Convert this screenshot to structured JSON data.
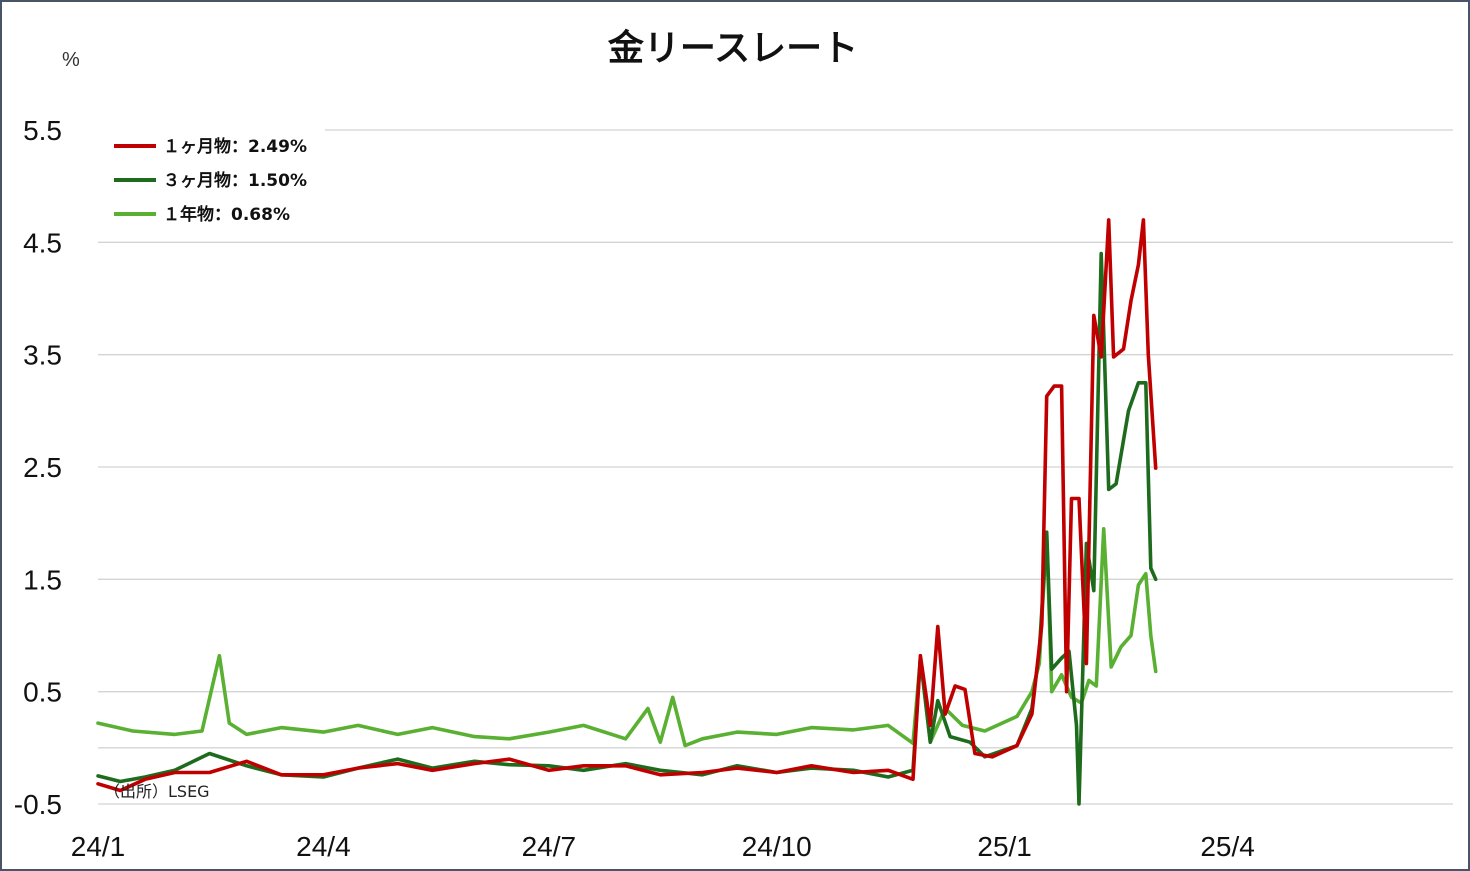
{
  "chart_data": {
    "type": "line",
    "title": "金リースレート",
    "unit_label": "%",
    "source": "（出所）LSEG",
    "ylim": [
      -0.5,
      5.5
    ],
    "yticks": [
      "5.5",
      "4.5",
      "3.5",
      "2.5",
      "1.5",
      "0.5",
      "-0.5"
    ],
    "ytick_values": [
      5.5,
      4.5,
      3.5,
      2.5,
      1.5,
      0.5,
      -0.5
    ],
    "xticks": [
      "24/1",
      "24/4",
      "24/7",
      "24/10",
      "25/1",
      "25/4"
    ],
    "xtick_dates": [
      "2024-01-01",
      "2024-04-01",
      "2024-07-01",
      "2024-10-01",
      "2025-01-01",
      "2025-04-01"
    ],
    "xlim": [
      "2024-01-01",
      "2025-07-01"
    ],
    "grid": true,
    "legend_position": "top-left",
    "series": [
      {
        "name": "１ヶ月物",
        "legend": "１ヶ月物：2.49%",
        "color": "#c00000",
        "points": [
          [
            "2024-01-01",
            -0.32
          ],
          [
            "2024-01-10",
            -0.38
          ],
          [
            "2024-01-20",
            -0.28
          ],
          [
            "2024-02-01",
            -0.22
          ],
          [
            "2024-02-15",
            -0.22
          ],
          [
            "2024-03-01",
            -0.12
          ],
          [
            "2024-03-15",
            -0.24
          ],
          [
            "2024-04-01",
            -0.24
          ],
          [
            "2024-04-15",
            -0.18
          ],
          [
            "2024-05-01",
            -0.14
          ],
          [
            "2024-05-15",
            -0.2
          ],
          [
            "2024-06-01",
            -0.14
          ],
          [
            "2024-06-15",
            -0.1
          ],
          [
            "2024-07-01",
            -0.2
          ],
          [
            "2024-07-15",
            -0.16
          ],
          [
            "2024-08-01",
            -0.16
          ],
          [
            "2024-08-15",
            -0.24
          ],
          [
            "2024-09-01",
            -0.22
          ],
          [
            "2024-09-15",
            -0.18
          ],
          [
            "2024-10-01",
            -0.22
          ],
          [
            "2024-10-15",
            -0.16
          ],
          [
            "2024-11-01",
            -0.22
          ],
          [
            "2024-11-15",
            -0.2
          ],
          [
            "2024-11-25",
            -0.28
          ],
          [
            "2024-11-28",
            0.82
          ],
          [
            "2024-12-02",
            0.2
          ],
          [
            "2024-12-05",
            1.08
          ],
          [
            "2024-12-08",
            0.3
          ],
          [
            "2024-12-12",
            0.55
          ],
          [
            "2024-12-16",
            0.52
          ],
          [
            "2024-12-20",
            -0.05
          ],
          [
            "2024-12-27",
            -0.08
          ],
          [
            "2025-01-06",
            0.02
          ],
          [
            "2025-01-12",
            0.3
          ],
          [
            "2025-01-16",
            1.1
          ],
          [
            "2025-01-18",
            3.13
          ],
          [
            "2025-01-21",
            3.22
          ],
          [
            "2025-01-24",
            3.22
          ],
          [
            "2025-01-26",
            0.5
          ],
          [
            "2025-01-28",
            2.22
          ],
          [
            "2025-01-31",
            2.22
          ],
          [
            "2025-02-03",
            0.75
          ],
          [
            "2025-02-06",
            3.85
          ],
          [
            "2025-02-09",
            3.48
          ],
          [
            "2025-02-12",
            4.7
          ],
          [
            "2025-02-14",
            3.48
          ],
          [
            "2025-02-18",
            3.55
          ],
          [
            "2025-02-21",
            3.98
          ],
          [
            "2025-02-24",
            4.3
          ],
          [
            "2025-02-26",
            4.7
          ],
          [
            "2025-02-28",
            3.5
          ],
          [
            "2025-03-03",
            2.49
          ]
        ]
      },
      {
        "name": "３ヶ月物",
        "legend": "３ヶ月物：1.50%",
        "color": "#1e6b1e",
        "points": [
          [
            "2024-01-01",
            -0.25
          ],
          [
            "2024-01-10",
            -0.3
          ],
          [
            "2024-01-20",
            -0.26
          ],
          [
            "2024-02-01",
            -0.2
          ],
          [
            "2024-02-15",
            -0.05
          ],
          [
            "2024-03-01",
            -0.16
          ],
          [
            "2024-03-15",
            -0.24
          ],
          [
            "2024-04-01",
            -0.26
          ],
          [
            "2024-04-15",
            -0.18
          ],
          [
            "2024-05-01",
            -0.1
          ],
          [
            "2024-05-15",
            -0.18
          ],
          [
            "2024-06-01",
            -0.12
          ],
          [
            "2024-06-15",
            -0.15
          ],
          [
            "2024-07-01",
            -0.16
          ],
          [
            "2024-07-15",
            -0.2
          ],
          [
            "2024-08-01",
            -0.14
          ],
          [
            "2024-08-15",
            -0.2
          ],
          [
            "2024-09-01",
            -0.24
          ],
          [
            "2024-09-15",
            -0.16
          ],
          [
            "2024-10-01",
            -0.22
          ],
          [
            "2024-10-15",
            -0.18
          ],
          [
            "2024-11-01",
            -0.2
          ],
          [
            "2024-11-15",
            -0.26
          ],
          [
            "2024-11-25",
            -0.2
          ],
          [
            "2024-11-28",
            0.8
          ],
          [
            "2024-12-02",
            0.05
          ],
          [
            "2024-12-05",
            0.42
          ],
          [
            "2024-12-10",
            0.1
          ],
          [
            "2024-12-18",
            0.05
          ],
          [
            "2024-12-24",
            -0.08
          ],
          [
            "2025-01-06",
            0.02
          ],
          [
            "2025-01-12",
            0.35
          ],
          [
            "2025-01-15",
            0.86
          ],
          [
            "2025-01-18",
            1.92
          ],
          [
            "2025-01-20",
            0.7
          ],
          [
            "2025-01-24",
            0.8
          ],
          [
            "2025-01-27",
            0.86
          ],
          [
            "2025-01-30",
            0.2
          ],
          [
            "2025-01-31",
            -0.5
          ],
          [
            "2025-02-03",
            1.82
          ],
          [
            "2025-02-06",
            1.4
          ],
          [
            "2025-02-09",
            4.4
          ],
          [
            "2025-02-12",
            2.3
          ],
          [
            "2025-02-15",
            2.35
          ],
          [
            "2025-02-20",
            3.0
          ],
          [
            "2025-02-24",
            3.25
          ],
          [
            "2025-02-27",
            3.25
          ],
          [
            "2025-03-01",
            1.6
          ],
          [
            "2025-03-03",
            1.5
          ]
        ]
      },
      {
        "name": "１年物",
        "legend": "１年物：0.68%",
        "color": "#5ab032",
        "points": [
          [
            "2024-01-01",
            0.22
          ],
          [
            "2024-01-15",
            0.15
          ],
          [
            "2024-02-01",
            0.12
          ],
          [
            "2024-02-12",
            0.15
          ],
          [
            "2024-02-19",
            0.82
          ],
          [
            "2024-02-23",
            0.22
          ],
          [
            "2024-03-01",
            0.12
          ],
          [
            "2024-03-15",
            0.18
          ],
          [
            "2024-04-01",
            0.14
          ],
          [
            "2024-04-15",
            0.2
          ],
          [
            "2024-05-01",
            0.12
          ],
          [
            "2024-05-15",
            0.18
          ],
          [
            "2024-06-01",
            0.1
          ],
          [
            "2024-06-15",
            0.08
          ],
          [
            "2024-07-01",
            0.14
          ],
          [
            "2024-07-15",
            0.2
          ],
          [
            "2024-08-01",
            0.08
          ],
          [
            "2024-08-10",
            0.35
          ],
          [
            "2024-08-15",
            0.05
          ],
          [
            "2024-08-20",
            0.45
          ],
          [
            "2024-08-25",
            0.02
          ],
          [
            "2024-09-01",
            0.08
          ],
          [
            "2024-09-15",
            0.14
          ],
          [
            "2024-10-01",
            0.12
          ],
          [
            "2024-10-15",
            0.18
          ],
          [
            "2024-11-01",
            0.16
          ],
          [
            "2024-11-15",
            0.2
          ],
          [
            "2024-11-25",
            0.04
          ],
          [
            "2024-11-28",
            0.8
          ],
          [
            "2024-12-02",
            0.05
          ],
          [
            "2024-12-08",
            0.35
          ],
          [
            "2024-12-15",
            0.2
          ],
          [
            "2024-12-24",
            0.15
          ],
          [
            "2025-01-06",
            0.28
          ],
          [
            "2025-01-12",
            0.5
          ],
          [
            "2025-01-15",
            0.75
          ],
          [
            "2025-01-18",
            1.9
          ],
          [
            "2025-01-20",
            0.5
          ],
          [
            "2025-01-24",
            0.65
          ],
          [
            "2025-01-28",
            0.45
          ],
          [
            "2025-02-01",
            0.4
          ],
          [
            "2025-02-04",
            0.6
          ],
          [
            "2025-02-07",
            0.55
          ],
          [
            "2025-02-10",
            1.95
          ],
          [
            "2025-02-13",
            0.72
          ],
          [
            "2025-02-17",
            0.9
          ],
          [
            "2025-02-21",
            1.0
          ],
          [
            "2025-02-24",
            1.45
          ],
          [
            "2025-02-27",
            1.55
          ],
          [
            "2025-03-01",
            1.0
          ],
          [
            "2025-03-03",
            0.68
          ]
        ]
      }
    ]
  }
}
